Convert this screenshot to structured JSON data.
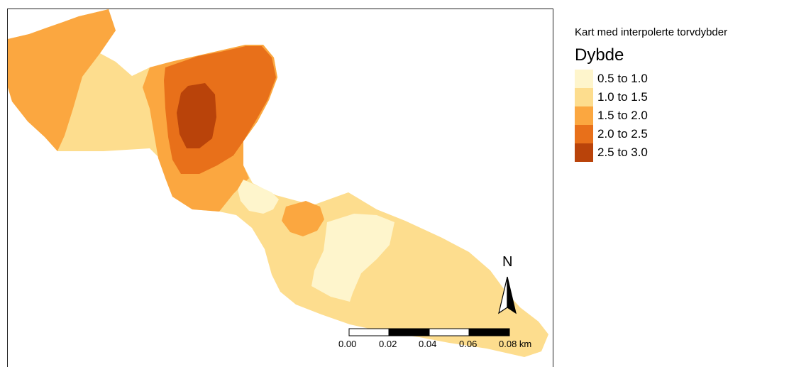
{
  "legend": {
    "caption": "Kart med interpolerte torvdybder",
    "title": "Dybde",
    "items": [
      {
        "label": "0.5 to 1.0",
        "color": "#fef5cc"
      },
      {
        "label": "1.0 to 1.5",
        "color": "#fddd8e"
      },
      {
        "label": "1.5 to 2.0",
        "color": "#fba740"
      },
      {
        "label": "2.0 to 2.5",
        "color": "#e8701a"
      },
      {
        "label": "2.5 to 3.0",
        "color": "#b9430a"
      }
    ]
  },
  "compass": {
    "letter": "N",
    "icon": "north-arrow-icon"
  },
  "scalebar": {
    "ticks": [
      "0.00",
      "0.02",
      "0.04",
      "0.06",
      "0.08 km"
    ]
  }
}
